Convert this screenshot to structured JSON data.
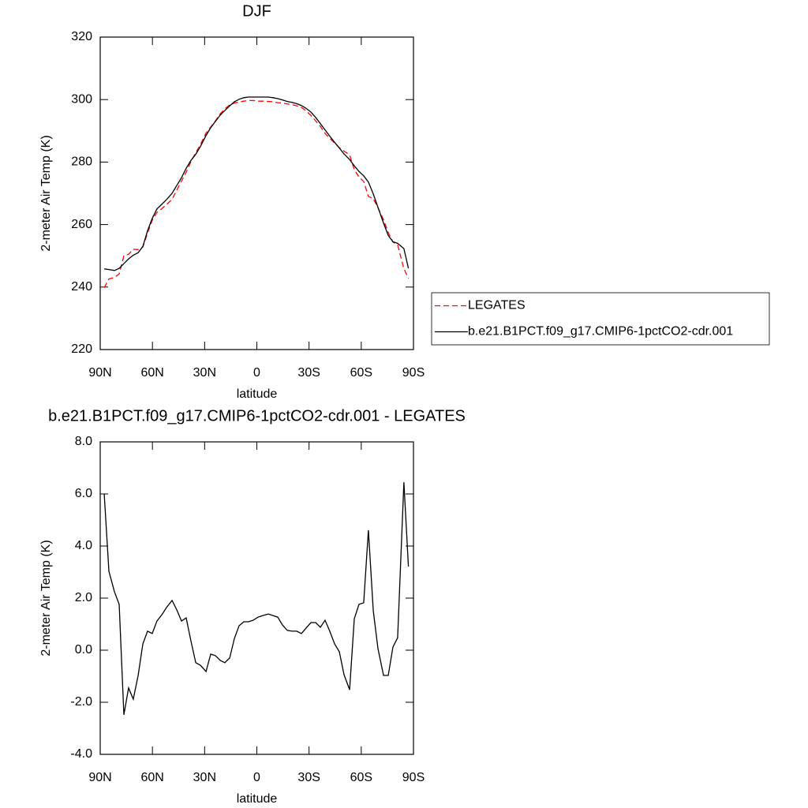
{
  "chart_data": [
    {
      "type": "line",
      "title": "DJF",
      "ylabel": "2-meter Air Temp (K)",
      "xlabel": "latitude",
      "x": [
        87.7,
        85,
        81.8,
        79.1,
        76.4,
        73.7,
        71,
        68.2,
        65.5,
        62.8,
        60.1,
        57.4,
        54.6,
        51.9,
        48.7,
        46,
        43.3,
        40.6,
        37.9,
        35.1,
        32.4,
        29.2,
        26.5,
        23.8,
        21.1,
        18.4,
        15.6,
        12.9,
        10.2,
        7.5,
        4.8,
        2.1,
        -0.7,
        -3.4,
        -6.6,
        -9.3,
        -12,
        -14.7,
        -17.5,
        -20.2,
        -22.9,
        -25.6,
        -28.3,
        -31.1,
        -33.8,
        -36.5,
        -39.2,
        -41.9,
        -44.7,
        -47.4,
        -50.1,
        -53.3,
        -56,
        -58.7,
        -61.4,
        -64.1,
        -66.9,
        -69.6,
        -72.8,
        -75.5,
        -78.2,
        -80.9,
        -84.5,
        -87.1
      ],
      "series": [
        {
          "name": "LEGATES",
          "color": "#ff0000",
          "line_style": "dashed",
          "values": [
            239.8,
            242.6,
            243.1,
            244.2,
            250.0,
            250.5,
            252.1,
            252.0,
            252.8,
            257.3,
            261.4,
            263.9,
            265.1,
            266.4,
            268.1,
            271.0,
            273.9,
            276.8,
            280.1,
            283.0,
            285.6,
            289.3,
            291.2,
            293.2,
            295.4,
            297.0,
            298.3,
            298.9,
            299.2,
            299.5,
            299.7,
            299.7,
            299.5,
            299.5,
            299.4,
            299.3,
            299.0,
            298.9,
            298.6,
            298.4,
            298.0,
            297.5,
            296.4,
            294.9,
            293.2,
            291.4,
            289.2,
            287.6,
            286.1,
            284.6,
            283.5,
            282.3,
            277.6,
            275.2,
            273.8,
            269.0,
            268.3,
            265.4,
            261.5,
            257.5,
            254.4,
            253.5,
            245.9,
            242.8
          ]
        },
        {
          "name": "b.e21.B1PCT.f09_g17.CMIP6-1pctCO2-cdr.001",
          "color": "#000000",
          "line_style": "solid",
          "values": [
            245.8,
            245.6,
            245.3,
            246,
            247.5,
            249,
            250.2,
            251,
            253,
            258,
            262,
            265,
            266.5,
            268,
            270,
            272.5,
            275,
            278,
            280.5,
            282.5,
            285,
            288.5,
            291,
            293,
            295,
            296.5,
            298,
            299.3,
            300.1,
            300.6,
            300.8,
            300.8,
            300.8,
            300.8,
            300.8,
            300.6,
            300.3,
            299.9,
            299.4,
            299.1,
            298.7,
            298.1,
            297.2,
            296,
            294.3,
            292.3,
            290.3,
            288.3,
            286.3,
            284.5,
            282.6,
            280.8,
            278.8,
            277,
            275.6,
            273.6,
            269.8,
            265.5,
            260.5,
            256.5,
            254.5,
            254,
            252.3,
            246
          ]
        }
      ],
      "xlim": [
        90,
        -90
      ],
      "xticks": [
        {
          "value": 90,
          "label": "90N"
        },
        {
          "value": 60,
          "label": "60N"
        },
        {
          "value": 30,
          "label": "30N"
        },
        0,
        {
          "value": -30,
          "label": "30S"
        },
        {
          "value": -60,
          "label": "60S"
        },
        {
          "value": -90,
          "label": "90S"
        }
      ],
      "ylim": [
        220,
        320
      ],
      "yticks": [
        220,
        240,
        260,
        280,
        300,
        320
      ],
      "legend": "right"
    },
    {
      "type": "line",
      "title": "b.e21.B1PCT.f09_g17.CMIP6-1pctCO2-cdr.001 - LEGATES",
      "ylabel": "2-meter Air Temp (K)",
      "xlabel": "latitude",
      "x": [
        87.7,
        85,
        81.8,
        79.1,
        76.4,
        73.7,
        71,
        68.2,
        65.5,
        62.8,
        60.1,
        57.4,
        54.6,
        51.9,
        48.7,
        46,
        43.3,
        40.6,
        37.9,
        35.1,
        32.4,
        29.2,
        26.5,
        23.8,
        21.1,
        18.4,
        15.6,
        12.9,
        10.2,
        7.5,
        4.8,
        2.1,
        -0.7,
        -3.4,
        -6.6,
        -9.3,
        -12,
        -14.7,
        -17.5,
        -20.2,
        -22.9,
        -25.6,
        -28.3,
        -31.1,
        -33.8,
        -36.5,
        -39.2,
        -41.9,
        -44.7,
        -47.4,
        -50.1,
        -53.3,
        -56,
        -58.7,
        -61.4,
        -64.1,
        -66.9,
        -69.6,
        -72.8,
        -75.5,
        -78.2,
        -80.9,
        -84.5,
        -87.1
      ],
      "values": [
        6.0,
        3.03,
        2.24,
        1.76,
        -2.48,
        -1.45,
        -1.88,
        -0.97,
        0.24,
        0.73,
        0.64,
        1.12,
        1.36,
        1.64,
        1.91,
        1.55,
        1.12,
        1.24,
        0.36,
        -0.48,
        -0.58,
        -0.82,
        -0.15,
        -0.21,
        -0.39,
        -0.48,
        -0.3,
        0.45,
        0.94,
        1.09,
        1.09,
        1.15,
        1.27,
        1.33,
        1.39,
        1.33,
        1.27,
        0.97,
        0.76,
        0.73,
        0.73,
        0.64,
        0.85,
        1.06,
        1.06,
        0.88,
        1.15,
        0.73,
        0.24,
        -0.06,
        -0.94,
        -1.52,
        1.21,
        1.76,
        1.82,
        4.61,
        1.52,
        0.06,
        -0.97,
        -0.97,
        0.12,
        0.48,
        6.45,
        3.21
      ],
      "color": "#000000",
      "line_style": "solid",
      "xlim": [
        90,
        -90
      ],
      "xticks": [
        {
          "value": 90,
          "label": "90N"
        },
        {
          "value": 60,
          "label": "60N"
        },
        {
          "value": 30,
          "label": "30N"
        },
        0,
        {
          "value": -30,
          "label": "30S"
        },
        {
          "value": -60,
          "label": "60S"
        },
        {
          "value": -90,
          "label": "90S"
        }
      ],
      "ylim": [
        -4,
        8
      ],
      "yticks": [
        {
          "value": -4,
          "label": "-4.0"
        },
        {
          "value": -2,
          "label": "-2.0"
        },
        {
          "value": 0,
          "label": "0.0"
        },
        {
          "value": 2,
          "label": "2.0"
        },
        {
          "value": 4,
          "label": "4.0"
        },
        {
          "value": 6,
          "label": "6.0"
        },
        {
          "value": 8,
          "label": "8.0"
        }
      ]
    }
  ]
}
